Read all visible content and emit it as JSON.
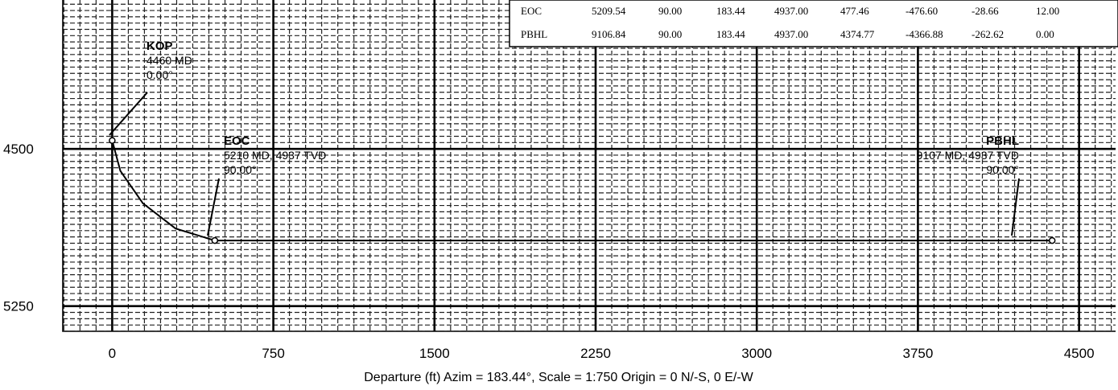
{
  "chart_data": {
    "type": "line",
    "title": "",
    "xlabel": "Departure (ft) Azim = 183.44°, Scale = 1:750  Origin = 0 N/-S, 0 E/-W",
    "ylabel": "",
    "x_ticks": [
      "0",
      "750",
      "1500",
      "2250",
      "3000",
      "3750",
      "4500"
    ],
    "y_ticks": [
      "4500",
      "5250"
    ],
    "xlim": [
      -230,
      4670
    ],
    "ylim": [
      5370,
      3790
    ],
    "grid": true,
    "series": [
      {
        "points": [
          {
            "x": 0,
            "y": 4460
          },
          {
            "x": 38,
            "y": 4605
          },
          {
            "x": 143,
            "y": 4760
          },
          {
            "x": 295,
            "y": 4880
          },
          {
            "x": 477.46,
            "y": 4937
          },
          {
            "x": 4374.77,
            "y": 4937
          }
        ]
      }
    ],
    "annotations": [
      {
        "name": "KOP",
        "lines": [
          "4460 MD",
          "0.00°"
        ],
        "x": 0,
        "y": 4460
      },
      {
        "name": "EOC",
        "lines": [
          "5210 MD, 4937 TVD",
          "90.00°"
        ],
        "x": 477.46,
        "y": 4937
      },
      {
        "name": "PBHL",
        "lines": [
          "9107 MD, 4937 TVD",
          "90.00°"
        ],
        "x": 4374.77,
        "y": 4937
      }
    ],
    "table": {
      "rows": [
        [
          "EOC",
          "5209.54",
          "90.00",
          "183.44",
          "4937.00",
          "477.46",
          "-476.60",
          "-28.66",
          "12.00"
        ],
        [
          "PBHL",
          "9106.84",
          "90.00",
          "183.44",
          "4937.00",
          "4374.77",
          "-4366.88",
          "-262.62",
          "0.00"
        ]
      ]
    }
  }
}
